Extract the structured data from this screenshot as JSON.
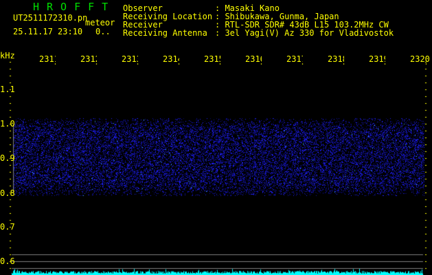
{
  "header": {
    "app_title": "HROFFT",
    "filename": "UT2511172310.pn",
    "mode": "meteor",
    "datetime": "25.11.17 23:10",
    "count": "0..",
    "fields": [
      {
        "label": "Observer",
        "value": "Masaki Kano"
      },
      {
        "label": "Receiving Location",
        "value": "Shibukawa, Gunma, Japan"
      },
      {
        "label": "Receiver",
        "value": "RTL-SDR SDR# 43dB L15 103.2MHz CW"
      },
      {
        "label": "Receiving Antenna",
        "value": "3el Yagi(V) Az 330 for Vladivostok"
      }
    ]
  },
  "axes": {
    "y_unit": "kHz",
    "y_ticks": [
      "1.1",
      "1.0",
      "0.9",
      "0.8",
      "0.7",
      "0.6"
    ],
    "x_ticks": [
      "2311",
      "2312",
      "2313",
      "2314",
      "2315",
      "2316",
      "2317",
      "2318",
      "2319",
      "2320"
    ]
  },
  "colors": {
    "text": "#ffff00",
    "title": "#00e000",
    "noise": "#1a1aff",
    "level": "#00ffff",
    "grid": "#808080"
  }
}
